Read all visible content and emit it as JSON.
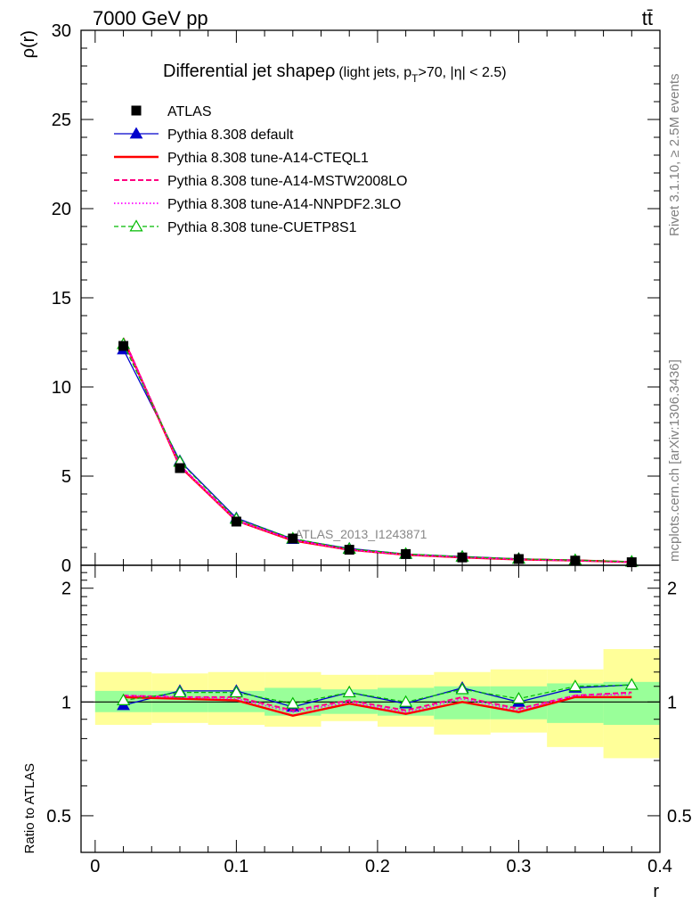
{
  "header": {
    "energy_label": "7000 GeV pp",
    "process_label": "tt̄",
    "side_label_top": "Rivet 3.1.10, ≥ 2.5M events",
    "side_label_bottom": "mcplots.cern.ch [arXiv:1306.3436]"
  },
  "colors": {
    "atlas": "#000000",
    "default": "#0000cc",
    "cteql1": "#ff0000",
    "mstw": "#ff0080",
    "nnpdf": "#ff00ff",
    "cuetp8s1": "#00bb00",
    "band_inner": "#99ff99",
    "band_outer": "#ffff99"
  },
  "chart_data": [
    {
      "type": "line",
      "title_main": "Differential jet shapeρ",
      "title_sub": "(light jets, p",
      "title_sub_subscript": "T",
      "title_sub_rest": ">70, |η| < 2.5)",
      "ylabel": "ρ(r)",
      "xlim": [
        -0.01,
        0.4
      ],
      "ylim": [
        0,
        30
      ],
      "y_ticks": [
        0,
        5,
        10,
        15,
        20,
        25,
        30
      ],
      "y_tick_labels": [
        "0",
        "5",
        "10",
        "15",
        "20",
        "25",
        "30"
      ],
      "watermark": "ATLAS_2013_I1243871",
      "x": [
        0.02,
        0.06,
        0.1,
        0.14,
        0.18,
        0.22,
        0.26,
        0.3,
        0.34,
        0.38
      ],
      "bin_edges": [
        0.0,
        0.04,
        0.08,
        0.12,
        0.16,
        0.2,
        0.24,
        0.28,
        0.32,
        0.36,
        0.4
      ],
      "series": [
        {
          "name": "ATLAS",
          "key": "atlas",
          "style": "square",
          "values": [
            12.3,
            5.45,
            2.45,
            1.5,
            0.87,
            0.63,
            0.44,
            0.35,
            0.26,
            0.17
          ]
        },
        {
          "name": "Pythia 8.308 default",
          "key": "default",
          "style": "solid-triangle",
          "values": [
            12.1,
            5.85,
            2.65,
            1.47,
            0.94,
            0.63,
            0.49,
            0.36,
            0.29,
            0.2
          ]
        },
        {
          "name": "Pythia 8.308 tune-A14-CTEQL1",
          "key": "cteql1",
          "style": "solid",
          "values": [
            12.7,
            5.55,
            2.5,
            1.39,
            0.87,
            0.59,
            0.44,
            0.33,
            0.27,
            0.18
          ]
        },
        {
          "name": "Pythia 8.308 tune-A14-MSTW2008LO",
          "key": "mstw",
          "style": "dashed",
          "values": [
            12.75,
            5.6,
            2.52,
            1.42,
            0.88,
            0.6,
            0.45,
            0.34,
            0.27,
            0.18
          ]
        },
        {
          "name": "Pythia 8.308 tune-A14-NNPDF2.3LO",
          "key": "nnpdf",
          "style": "dotted",
          "values": [
            12.7,
            5.58,
            2.5,
            1.42,
            0.87,
            0.6,
            0.45,
            0.34,
            0.27,
            0.18
          ]
        },
        {
          "name": "Pythia 8.308 tune-CUETP8S1",
          "key": "cuetp8s1",
          "style": "dashed-open-triangle",
          "values": [
            12.4,
            5.8,
            2.6,
            1.5,
            0.92,
            0.64,
            0.48,
            0.36,
            0.29,
            0.2
          ]
        }
      ]
    },
    {
      "type": "line",
      "ylabel": "Ratio to ATLAS",
      "xlabel": "r",
      "xlim": [
        -0.01,
        0.4
      ],
      "ylim": [
        0.4,
        2.3
      ],
      "y_scale": "log",
      "x_ticks": [
        0,
        0.1,
        0.2,
        0.3,
        0.4
      ],
      "x_tick_labels": [
        "0",
        "0.1",
        "0.2",
        "0.3",
        "0.4"
      ],
      "y_ticks": [
        0.5,
        1,
        2
      ],
      "y_tick_labels": [
        "0.5",
        "1",
        "2"
      ],
      "band_inner": {
        "low": [
          0.94,
          0.94,
          0.94,
          0.92,
          0.93,
          0.92,
          0.9,
          0.9,
          0.88,
          0.87
        ],
        "high": [
          1.07,
          1.07,
          1.07,
          1.09,
          1.08,
          1.09,
          1.1,
          1.1,
          1.12,
          1.13
        ]
      },
      "band_outer": {
        "low": [
          0.87,
          0.88,
          0.87,
          0.86,
          0.89,
          0.86,
          0.82,
          0.83,
          0.76,
          0.71
        ],
        "high": [
          1.2,
          1.19,
          1.2,
          1.2,
          1.18,
          1.18,
          1.2,
          1.22,
          1.22,
          1.38
        ]
      },
      "series": [
        {
          "name": "Pythia 8.308 default",
          "key": "default",
          "style": "solid-triangle",
          "values": [
            0.98,
            1.07,
            1.07,
            0.97,
            1.06,
            0.99,
            1.09,
            1.0,
            1.09,
            1.11
          ]
        },
        {
          "name": "Pythia 8.308 tune-A14-CTEQL1",
          "key": "cteql1",
          "style": "solid",
          "values": [
            1.03,
            1.02,
            1.01,
            0.92,
            0.99,
            0.93,
            1.0,
            0.94,
            1.03,
            1.03
          ]
        },
        {
          "name": "Pythia 8.308 tune-A14-MSTW2008LO",
          "key": "mstw",
          "style": "dashed",
          "values": [
            1.04,
            1.03,
            1.03,
            0.95,
            1.01,
            0.95,
            1.03,
            0.96,
            1.04,
            1.06
          ]
        },
        {
          "name": "Pythia 8.308 tune-A14-NNPDF2.3LO",
          "key": "nnpdf",
          "style": "dotted",
          "values": [
            1.04,
            1.03,
            1.02,
            0.94,
            1.0,
            0.94,
            1.02,
            0.95,
            1.04,
            1.05
          ]
        },
        {
          "name": "Pythia 8.308 tune-CUETP8S1",
          "key": "cuetp8s1",
          "style": "dashed-open-triangle",
          "values": [
            1.01,
            1.06,
            1.06,
            0.99,
            1.06,
            1.0,
            1.08,
            1.02,
            1.1,
            1.11
          ]
        }
      ]
    }
  ]
}
